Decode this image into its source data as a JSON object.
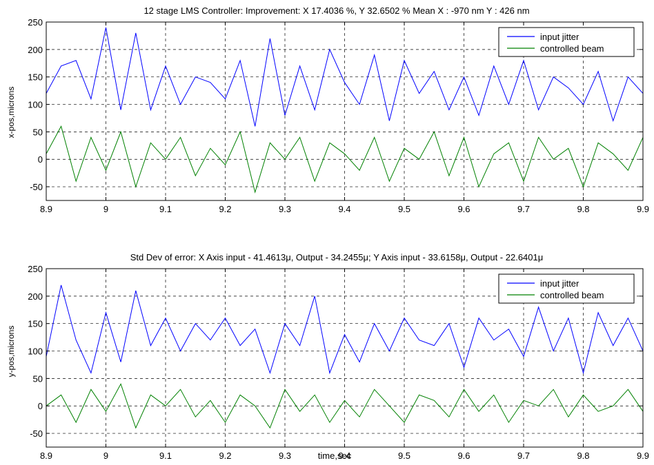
{
  "chart_data": [
    {
      "type": "line",
      "title": "12 stage LMS Controller: Improvement: X  17.4036 %, Y  32.6502 %    Mean X : -970 nm  Y : 426 nm",
      "xlabel": "",
      "ylabel": "x-pos,microns",
      "xlim": [
        8.9,
        9.9
      ],
      "ylim": [
        -75,
        250
      ],
      "xticks": [
        "8.9",
        "9",
        "9.1",
        "9.2",
        "9.3",
        "9.4",
        "9.5",
        "9.6",
        "9.7",
        "9.8",
        "9.9"
      ],
      "yticks": [
        "-50",
        "0",
        "50",
        "100",
        "150",
        "200",
        "250"
      ],
      "grid": true,
      "legend_position": "top-right",
      "x": [
        8.9,
        8.925,
        8.95,
        8.975,
        9.0,
        9.025,
        9.05,
        9.075,
        9.1,
        9.125,
        9.15,
        9.175,
        9.2,
        9.225,
        9.25,
        9.275,
        9.3,
        9.325,
        9.35,
        9.375,
        9.4,
        9.425,
        9.45,
        9.475,
        9.5,
        9.525,
        9.55,
        9.575,
        9.6,
        9.625,
        9.65,
        9.675,
        9.7,
        9.725,
        9.75,
        9.775,
        9.8,
        9.825,
        9.85,
        9.875,
        9.9
      ],
      "series": [
        {
          "name": "input jitter",
          "color": "#0000ff",
          "values": [
            120,
            170,
            180,
            110,
            240,
            90,
            230,
            90,
            170,
            100,
            150,
            140,
            110,
            180,
            60,
            220,
            80,
            170,
            90,
            200,
            140,
            100,
            190,
            70,
            180,
            120,
            160,
            90,
            150,
            80,
            170,
            100,
            180,
            90,
            150,
            130,
            100,
            160,
            70,
            150,
            120
          ]
        },
        {
          "name": "controlled beam",
          "color": "#008000",
          "values": [
            10,
            60,
            -40,
            40,
            -20,
            50,
            -50,
            30,
            0,
            40,
            -30,
            20,
            -10,
            50,
            -60,
            30,
            0,
            40,
            -40,
            30,
            10,
            -20,
            40,
            -40,
            20,
            0,
            50,
            -30,
            40,
            -50,
            10,
            30,
            -40,
            40,
            0,
            20,
            -50,
            30,
            10,
            -20,
            40
          ]
        }
      ]
    },
    {
      "type": "line",
      "title": "Std Dev of error: X Axis input - 41.4613μ, Output - 34.2455μ; Y Axis input - 33.6158μ, Output - 22.6401μ",
      "xlabel": "time,sec",
      "ylabel": "y-pos,microns",
      "xlim": [
        8.9,
        9.9
      ],
      "ylim": [
        -75,
        250
      ],
      "xticks": [
        "8.9",
        "9",
        "9.1",
        "9.2",
        "9.3",
        "9.4",
        "9.5",
        "9.6",
        "9.7",
        "9.8",
        "9.9"
      ],
      "yticks": [
        "-50",
        "0",
        "50",
        "100",
        "150",
        "200",
        "250"
      ],
      "grid": true,
      "legend_position": "top-right",
      "x": [
        8.9,
        8.925,
        8.95,
        8.975,
        9.0,
        9.025,
        9.05,
        9.075,
        9.1,
        9.125,
        9.15,
        9.175,
        9.2,
        9.225,
        9.25,
        9.275,
        9.3,
        9.325,
        9.35,
        9.375,
        9.4,
        9.425,
        9.45,
        9.475,
        9.5,
        9.525,
        9.55,
        9.575,
        9.6,
        9.625,
        9.65,
        9.675,
        9.7,
        9.725,
        9.75,
        9.775,
        9.8,
        9.825,
        9.85,
        9.875,
        9.9
      ],
      "series": [
        {
          "name": "input jitter",
          "color": "#0000ff",
          "values": [
            90,
            220,
            120,
            60,
            170,
            80,
            210,
            110,
            160,
            100,
            150,
            120,
            160,
            110,
            140,
            60,
            150,
            110,
            200,
            60,
            130,
            80,
            150,
            100,
            160,
            120,
            110,
            150,
            70,
            160,
            120,
            140,
            90,
            180,
            100,
            160,
            60,
            170,
            110,
            160,
            100
          ]
        },
        {
          "name": "controlled beam",
          "color": "#008000",
          "values": [
            0,
            20,
            -30,
            30,
            -10,
            40,
            -40,
            20,
            0,
            30,
            -20,
            10,
            -30,
            20,
            0,
            -40,
            30,
            -10,
            20,
            -30,
            10,
            -20,
            30,
            0,
            -30,
            20,
            10,
            -20,
            30,
            -10,
            20,
            -30,
            10,
            0,
            30,
            -20,
            20,
            -10,
            0,
            30,
            -10
          ]
        }
      ]
    }
  ]
}
